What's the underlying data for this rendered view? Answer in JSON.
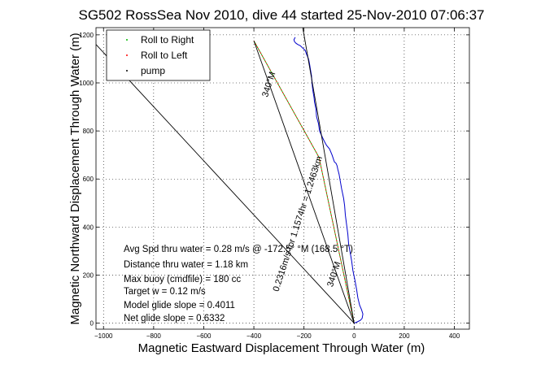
{
  "chart_data": {
    "type": "line",
    "title": "SG502 RossSea Nov 2010, dive 44 started 25-Nov-2010 07:06:37",
    "xlabel": "Magnetic Eastward Displacement Through Water (m)",
    "ylabel": "Magnetic Northward Displacement Through Water (m)",
    "xlim": [
      -1030,
      460
    ],
    "ylim": [
      -25,
      1230
    ],
    "xticks": [
      -1000,
      -800,
      -600,
      -400,
      -200,
      0,
      200,
      400
    ],
    "xtick_labels": [
      "−1000",
      "−800",
      "−600",
      "−400",
      "−200",
      "0",
      "200",
      "400"
    ],
    "yticks": [
      0,
      200,
      400,
      600,
      800,
      1000,
      1200
    ],
    "ytick_labels": [
      "0",
      "200",
      "400",
      "600",
      "800",
      "1000",
      "1200"
    ],
    "grid": true,
    "legend_position": "top-left",
    "legend": [
      {
        "label": "Roll to Right",
        "color": "#00bb00"
      },
      {
        "label": "Roll to Left",
        "color": "#ff0000"
      },
      {
        "label": "pump",
        "color": "#000000"
      }
    ],
    "series": [
      {
        "name": "",
        "kind": "track",
        "color": "#0000cc",
        "x": [
          0,
          12,
          25,
          32,
          35,
          30,
          22,
          15,
          10,
          3,
          -5,
          -10,
          -15,
          -22,
          -25,
          -30,
          -35,
          -38,
          -42,
          -50,
          -55,
          -60,
          -65,
          -68,
          -72,
          -75,
          -78,
          -80,
          -88,
          -98,
          -110,
          -118,
          -125,
          -138,
          -142,
          -150,
          -152,
          -158,
          -160,
          -165,
          -168,
          -170,
          -175,
          -178,
          -182,
          -190,
          -195,
          -205,
          -215,
          -225,
          -232,
          -238,
          -240,
          -235
        ],
        "y": [
          0,
          5,
          12,
          20,
          38,
          55,
          75,
          105,
          140,
          180,
          220,
          260,
          290,
          330,
          370,
          410,
          450,
          490,
          520,
          560,
          590,
          620,
          640,
          655,
          665,
          668,
          670,
          675,
          700,
          725,
          740,
          755,
          770,
          800,
          830,
          860,
          890,
          920,
          940,
          970,
          1000,
          1030,
          1060,
          1080,
          1100,
          1120,
          1135,
          1145,
          1155,
          1160,
          1165,
          1172,
          1180,
          1190
        ]
      },
      {
        "name": "",
        "kind": "roll-right",
        "color": "#00bb00",
        "x": [
          -400,
          -140,
          0
        ],
        "y": [
          1175,
          690,
          0
        ]
      },
      {
        "name": "",
        "kind": "roll-left",
        "color": "#ff0000",
        "x": [
          -400,
          -140,
          0
        ],
        "y": [
          1175,
          690,
          0
        ]
      },
      {
        "name": "",
        "kind": "pump",
        "color": "#000000",
        "points": [
          [
            -400,
            1175
          ],
          [
            0,
            0
          ]
        ]
      },
      {
        "name": "",
        "kind": "reference-line",
        "color": "#000000",
        "points": [
          [
            -205,
            1230
          ],
          [
            0,
            0
          ]
        ]
      },
      {
        "name": "",
        "kind": "reference-line",
        "color": "#000000",
        "points": [
          [
            -1030,
            1160
          ],
          [
            0,
            0
          ]
        ]
      }
    ],
    "annotations": [
      {
        "text": "340°M",
        "x": -330,
        "y": 990,
        "angle": -72
      },
      {
        "text": "0.2316m/s for 1.1574hr = 1.2463km",
        "x": -215,
        "y": 410,
        "angle": -72
      },
      {
        "text": "340°M",
        "x": -70,
        "y": 200,
        "angle": -72
      }
    ],
    "stats_lines": [
      "Avg Spd thru water =  0.28 m/s @ -172.5° °M (168.5 °T)",
      "Distance thru water =  1.18 km",
      "Max buoy (cmdfile) = 180 cc",
      "Target w = 0.12 m/s",
      "Model glide slope = 0.4011",
      "Net glide slope = 0.6332"
    ]
  }
}
